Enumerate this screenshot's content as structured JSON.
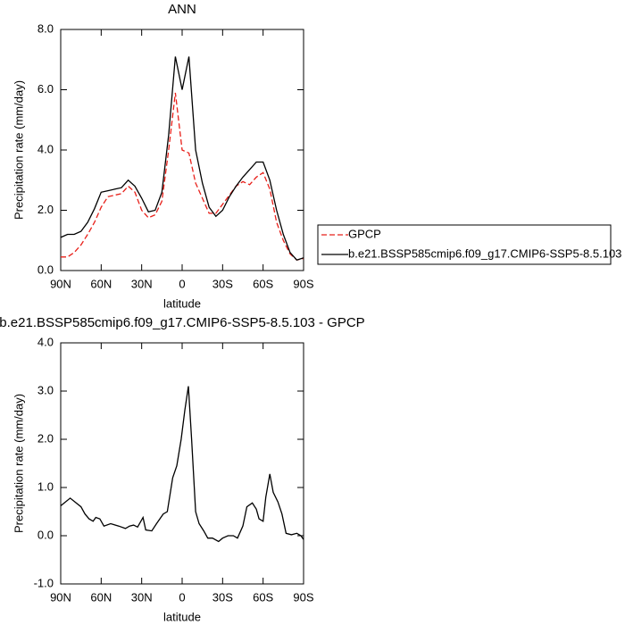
{
  "chart_data": [
    {
      "type": "line",
      "title": "ANN",
      "xlabel": "latitude",
      "ylabel": "Precipitation rate (mm/day)",
      "x": [
        90,
        85,
        80,
        75,
        70,
        65,
        60,
        55,
        50,
        45,
        40,
        35,
        30,
        25,
        20,
        15,
        10,
        5,
        0,
        -5,
        -10,
        -15,
        -20,
        -25,
        -30,
        -35,
        -40,
        -45,
        -50,
        -55,
        -60,
        -65,
        -70,
        -75,
        -80,
        -85,
        -90
      ],
      "series": [
        {
          "name": "GPCP",
          "color": "#e8201a",
          "dashed": true,
          "values": [
            0.45,
            0.45,
            0.6,
            0.85,
            1.2,
            1.6,
            2.1,
            2.45,
            2.5,
            2.55,
            2.8,
            2.6,
            2.0,
            1.75,
            1.85,
            2.3,
            4.0,
            5.9,
            4.0,
            3.9,
            2.9,
            2.4,
            1.9,
            1.9,
            2.2,
            2.5,
            2.8,
            2.95,
            2.85,
            3.1,
            3.25,
            2.7,
            1.6,
            1.0,
            0.55,
            0.35,
            0.4
          ]
        },
        {
          "name": "b.e21.BSSP585cmip6.f09_g17.CMIP6-SSP5-8.5.103",
          "color": "#000000",
          "dashed": false,
          "values": [
            1.1,
            1.2,
            1.2,
            1.3,
            1.6,
            2.05,
            2.6,
            2.65,
            2.7,
            2.75,
            3.0,
            2.8,
            2.4,
            1.95,
            2.0,
            2.6,
            4.5,
            7.1,
            6.0,
            7.1,
            4.0,
            2.9,
            2.1,
            1.8,
            2.0,
            2.45,
            2.8,
            3.1,
            3.35,
            3.6,
            3.6,
            3.0,
            2.0,
            1.2,
            0.6,
            0.35,
            0.42
          ]
        }
      ],
      "xlim": [
        90,
        -90
      ],
      "xticks": [
        {
          "value": 90,
          "label": "90N"
        },
        {
          "value": 60,
          "label": "60N"
        },
        {
          "value": 30,
          "label": "30N"
        },
        0,
        {
          "value": -30,
          "label": "30S"
        },
        {
          "value": -60,
          "label": "60S"
        },
        {
          "value": -90,
          "label": "90S"
        }
      ],
      "ylim": [
        0,
        8
      ],
      "yticks": [
        {
          "value": 0,
          "label": "0.0"
        },
        {
          "value": 2,
          "label": "2.0"
        },
        {
          "value": 4,
          "label": "4.0"
        },
        {
          "value": 6,
          "label": "6.0"
        },
        {
          "value": 8,
          "label": "8.0"
        }
      ],
      "legend": "right"
    },
    {
      "type": "line",
      "title": "b.e21.BSSP585cmip6.f09_g17.CMIP6-SSP5-8.5.103 - GPCP",
      "xlabel": "latitude",
      "ylabel": "Precipitation rate (mm/day)",
      "x": [
        90,
        83,
        75,
        72,
        69,
        66,
        64,
        61,
        58,
        53,
        47,
        42,
        39,
        36,
        33,
        29,
        27,
        22.5,
        19,
        14,
        11,
        7,
        4,
        0.7,
        -2,
        -4.6,
        -7,
        -10,
        -12.6,
        -16,
        -19,
        -22.5,
        -27,
        -30,
        -34,
        -38,
        -41,
        -45,
        -48,
        -52,
        -55,
        -57,
        -60,
        -62,
        -65,
        -67.5,
        -71,
        -74,
        -77,
        -81,
        -85,
        -88,
        -90
      ],
      "series": [
        {
          "color": "#000000",
          "dashed": false,
          "values": [
            0.62,
            0.78,
            0.6,
            0.45,
            0.35,
            0.3,
            0.38,
            0.35,
            0.2,
            0.25,
            0.2,
            0.15,
            0.2,
            0.22,
            0.18,
            0.38,
            0.12,
            0.1,
            0.25,
            0.45,
            0.5,
            1.2,
            1.45,
            2.0,
            2.6,
            3.1,
            2.0,
            0.5,
            0.25,
            0.1,
            -0.05,
            -0.05,
            -0.12,
            -0.05,
            0.0,
            0.0,
            -0.05,
            0.2,
            0.6,
            0.68,
            0.55,
            0.35,
            0.3,
            0.8,
            1.28,
            0.9,
            0.7,
            0.45,
            0.05,
            0.02,
            0.05,
            0.0,
            -0.08
          ]
        }
      ],
      "xlim": [
        90,
        -90
      ],
      "xticks": [
        {
          "value": 90,
          "label": "90N"
        },
        {
          "value": 60,
          "label": "60N"
        },
        {
          "value": 30,
          "label": "30N"
        },
        0,
        {
          "value": -30,
          "label": "30S"
        },
        {
          "value": -60,
          "label": "60S"
        },
        {
          "value": -90,
          "label": "90S"
        }
      ],
      "ylim": [
        -1,
        4
      ],
      "yticks": [
        {
          "value": -1,
          "label": "-1.0"
        },
        {
          "value": 0,
          "label": "0.0"
        },
        {
          "value": 1,
          "label": "1.0"
        },
        {
          "value": 2,
          "label": "2.0"
        },
        {
          "value": 3,
          "label": "3.0"
        },
        {
          "value": 4,
          "label": "4.0"
        }
      ]
    }
  ]
}
